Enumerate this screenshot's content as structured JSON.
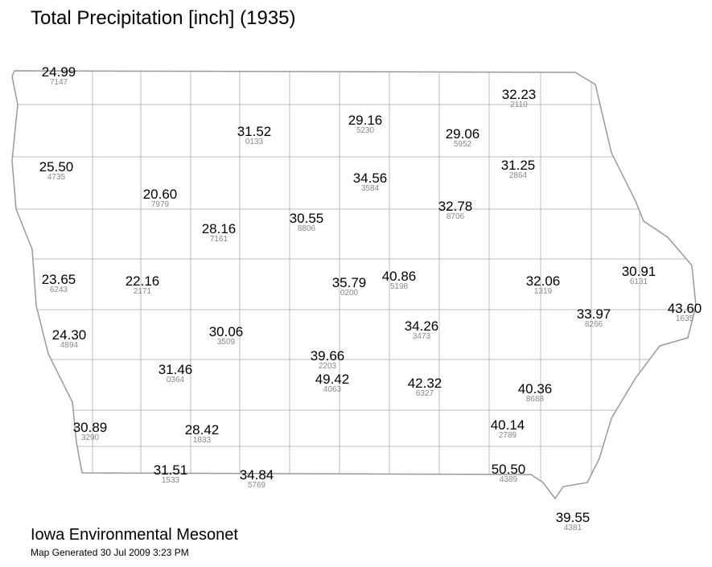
{
  "title": "Total Precipitation [inch] (1935)",
  "stations": [
    {
      "value": "24.99",
      "id": "7147"
    },
    {
      "value": "25.50",
      "id": "4735"
    },
    {
      "value": "31.52",
      "id": "0133"
    },
    {
      "value": "29.16",
      "id": "5230"
    },
    {
      "value": "29.06",
      "id": "5952"
    },
    {
      "value": "32.23",
      "id": "2110"
    },
    {
      "value": "31.25",
      "id": "2864"
    },
    {
      "value": "34.56",
      "id": "3584"
    },
    {
      "value": "20.60",
      "id": "7979"
    },
    {
      "value": "28.16",
      "id": "7161"
    },
    {
      "value": "30.55",
      "id": "8806"
    },
    {
      "value": "32.78",
      "id": "8706"
    },
    {
      "value": "23.65",
      "id": "6243"
    },
    {
      "value": "22.16",
      "id": "2171"
    },
    {
      "value": "35.79",
      "id": "0200"
    },
    {
      "value": "40.86",
      "id": "5198"
    },
    {
      "value": "32.06",
      "id": "1319"
    },
    {
      "value": "30.91",
      "id": "6131"
    },
    {
      "value": "43.60",
      "id": "1635"
    },
    {
      "value": "33.97",
      "id": "8266"
    },
    {
      "value": "24.30",
      "id": "4894"
    },
    {
      "value": "30.06",
      "id": "3509"
    },
    {
      "value": "34.26",
      "id": "3473"
    },
    {
      "value": "39.66",
      "id": "2203"
    },
    {
      "value": "31.46",
      "id": "0364"
    },
    {
      "value": "49.42",
      "id": "4063"
    },
    {
      "value": "42.32",
      "id": "6327"
    },
    {
      "value": "40.36",
      "id": "8688"
    },
    {
      "value": "30.89",
      "id": "3290"
    },
    {
      "value": "28.42",
      "id": "1833"
    },
    {
      "value": "40.14",
      "id": "2789"
    },
    {
      "value": "31.51",
      "id": "1533"
    },
    {
      "value": "34.84",
      "id": "5769"
    },
    {
      "value": "50.50",
      "id": "4389"
    },
    {
      "value": "39.55",
      "id": "4381"
    }
  ],
  "footer": {
    "org": "Iowa Environmental Mesonet",
    "generated": "Map Generated 30 Jul 2009 3:23 PM"
  }
}
